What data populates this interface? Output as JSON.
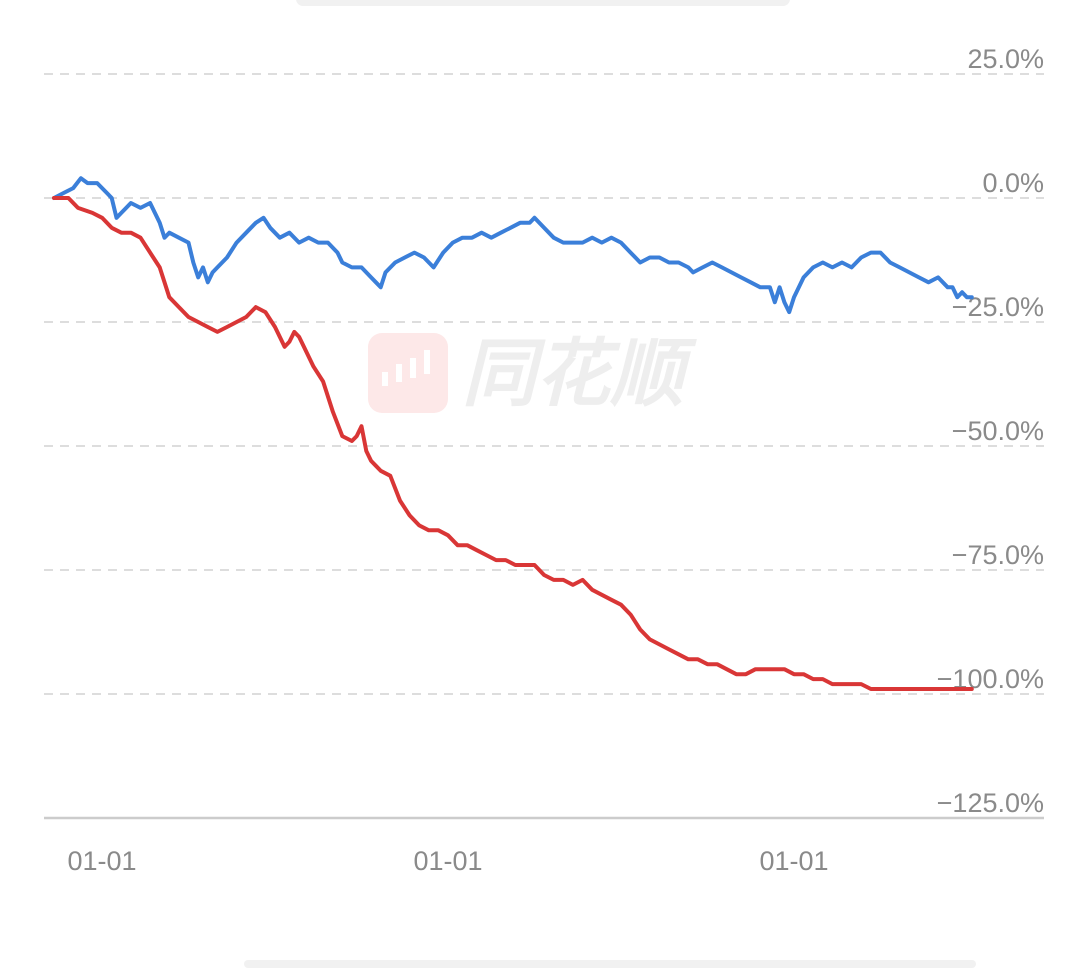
{
  "watermark": {
    "text": "同花顺",
    "icon": "candlestick-logo-icon"
  },
  "colors": {
    "series_1": "#3b7fd9",
    "series_2": "#d93636",
    "grid": "#dddddd",
    "axis": "#cccccc",
    "tick": "#8a8a8a"
  },
  "chart_data": {
    "type": "line",
    "y_unit": "%",
    "ylim": [
      -125,
      25
    ],
    "y_ticks": [
      25,
      0,
      -25,
      -50,
      -75,
      -100,
      -125
    ],
    "y_tick_labels": [
      "25.0%",
      "0.0%",
      "−25.0%",
      "−50.0%",
      "−75.0%",
      "−100.0%",
      "−125.0%"
    ],
    "x_tick_labels": [
      "01-01",
      "01-01",
      "01-01"
    ],
    "x_tick_positions": [
      0.05,
      0.41,
      0.77
    ],
    "xlim": [
      0,
      1
    ],
    "grid": "horizontal dashed",
    "legend": "none",
    "series": [
      {
        "color": "#3b7fd9",
        "points": [
          [
            0,
            0
          ],
          [
            0.01,
            1
          ],
          [
            0.02,
            2
          ],
          [
            0.028,
            4
          ],
          [
            0.035,
            3
          ],
          [
            0.045,
            3
          ],
          [
            0.055,
            1
          ],
          [
            0.06,
            0
          ],
          [
            0.065,
            -4
          ],
          [
            0.07,
            -3
          ],
          [
            0.08,
            -1
          ],
          [
            0.09,
            -2
          ],
          [
            0.1,
            -1
          ],
          [
            0.105,
            -3
          ],
          [
            0.11,
            -5
          ],
          [
            0.115,
            -8
          ],
          [
            0.12,
            -7
          ],
          [
            0.13,
            -8
          ],
          [
            0.14,
            -9
          ],
          [
            0.145,
            -13
          ],
          [
            0.15,
            -16
          ],
          [
            0.155,
            -14
          ],
          [
            0.16,
            -17
          ],
          [
            0.165,
            -15
          ],
          [
            0.17,
            -14
          ],
          [
            0.18,
            -12
          ],
          [
            0.19,
            -9
          ],
          [
            0.2,
            -7
          ],
          [
            0.21,
            -5
          ],
          [
            0.218,
            -4
          ],
          [
            0.225,
            -6
          ],
          [
            0.235,
            -8
          ],
          [
            0.245,
            -7
          ],
          [
            0.255,
            -9
          ],
          [
            0.265,
            -8
          ],
          [
            0.275,
            -9
          ],
          [
            0.285,
            -9
          ],
          [
            0.295,
            -11
          ],
          [
            0.3,
            -13
          ],
          [
            0.31,
            -14
          ],
          [
            0.32,
            -14
          ],
          [
            0.33,
            -16
          ],
          [
            0.335,
            -17
          ],
          [
            0.34,
            -18
          ],
          [
            0.345,
            -15
          ],
          [
            0.355,
            -13
          ],
          [
            0.365,
            -12
          ],
          [
            0.375,
            -11
          ],
          [
            0.385,
            -12
          ],
          [
            0.395,
            -14
          ],
          [
            0.405,
            -11
          ],
          [
            0.415,
            -9
          ],
          [
            0.425,
            -8
          ],
          [
            0.435,
            -8
          ],
          [
            0.445,
            -7
          ],
          [
            0.455,
            -8
          ],
          [
            0.465,
            -7
          ],
          [
            0.475,
            -6
          ],
          [
            0.485,
            -5
          ],
          [
            0.495,
            -5
          ],
          [
            0.5,
            -4
          ],
          [
            0.51,
            -6
          ],
          [
            0.52,
            -8
          ],
          [
            0.53,
            -9
          ],
          [
            0.54,
            -9
          ],
          [
            0.55,
            -9
          ],
          [
            0.56,
            -8
          ],
          [
            0.57,
            -9
          ],
          [
            0.58,
            -8
          ],
          [
            0.59,
            -9
          ],
          [
            0.6,
            -11
          ],
          [
            0.61,
            -13
          ],
          [
            0.62,
            -12
          ],
          [
            0.63,
            -12
          ],
          [
            0.64,
            -13
          ],
          [
            0.65,
            -13
          ],
          [
            0.66,
            -14
          ],
          [
            0.665,
            -15
          ],
          [
            0.675,
            -14
          ],
          [
            0.685,
            -13
          ],
          [
            0.695,
            -14
          ],
          [
            0.705,
            -15
          ],
          [
            0.715,
            -16
          ],
          [
            0.725,
            -17
          ],
          [
            0.735,
            -18
          ],
          [
            0.745,
            -18
          ],
          [
            0.75,
            -21
          ],
          [
            0.755,
            -18
          ],
          [
            0.76,
            -21
          ],
          [
            0.765,
            -23
          ],
          [
            0.77,
            -20
          ],
          [
            0.78,
            -16
          ],
          [
            0.79,
            -14
          ],
          [
            0.8,
            -13
          ],
          [
            0.81,
            -14
          ],
          [
            0.82,
            -13
          ],
          [
            0.83,
            -14
          ],
          [
            0.84,
            -12
          ],
          [
            0.85,
            -11
          ],
          [
            0.86,
            -11
          ],
          [
            0.87,
            -13
          ],
          [
            0.88,
            -14
          ],
          [
            0.89,
            -15
          ],
          [
            0.9,
            -16
          ],
          [
            0.91,
            -17
          ],
          [
            0.92,
            -16
          ],
          [
            0.93,
            -18
          ],
          [
            0.935,
            -18
          ],
          [
            0.94,
            -20
          ],
          [
            0.945,
            -19
          ],
          [
            0.95,
            -20
          ],
          [
            0.955,
            -20
          ]
        ]
      },
      {
        "color": "#d93636",
        "points": [
          [
            0,
            0
          ],
          [
            0.015,
            0
          ],
          [
            0.025,
            -2
          ],
          [
            0.04,
            -3
          ],
          [
            0.05,
            -4
          ],
          [
            0.06,
            -6
          ],
          [
            0.07,
            -7
          ],
          [
            0.08,
            -7
          ],
          [
            0.09,
            -8
          ],
          [
            0.1,
            -11
          ],
          [
            0.11,
            -14
          ],
          [
            0.115,
            -17
          ],
          [
            0.12,
            -20
          ],
          [
            0.13,
            -22
          ],
          [
            0.14,
            -24
          ],
          [
            0.15,
            -25
          ],
          [
            0.16,
            -26
          ],
          [
            0.17,
            -27
          ],
          [
            0.18,
            -26
          ],
          [
            0.19,
            -25
          ],
          [
            0.2,
            -24
          ],
          [
            0.21,
            -22
          ],
          [
            0.22,
            -23
          ],
          [
            0.23,
            -26
          ],
          [
            0.235,
            -28
          ],
          [
            0.24,
            -30
          ],
          [
            0.245,
            -29
          ],
          [
            0.25,
            -27
          ],
          [
            0.255,
            -28
          ],
          [
            0.26,
            -30
          ],
          [
            0.27,
            -34
          ],
          [
            0.28,
            -37
          ],
          [
            0.29,
            -43
          ],
          [
            0.3,
            -48
          ],
          [
            0.31,
            -49
          ],
          [
            0.315,
            -48
          ],
          [
            0.32,
            -46
          ],
          [
            0.325,
            -51
          ],
          [
            0.33,
            -53
          ],
          [
            0.335,
            -54
          ],
          [
            0.34,
            -55
          ],
          [
            0.35,
            -56
          ],
          [
            0.36,
            -61
          ],
          [
            0.37,
            -64
          ],
          [
            0.38,
            -66
          ],
          [
            0.39,
            -67
          ],
          [
            0.4,
            -67
          ],
          [
            0.41,
            -68
          ],
          [
            0.42,
            -70
          ],
          [
            0.43,
            -70
          ],
          [
            0.44,
            -71
          ],
          [
            0.45,
            -72
          ],
          [
            0.46,
            -73
          ],
          [
            0.47,
            -73
          ],
          [
            0.48,
            -74
          ],
          [
            0.49,
            -74
          ],
          [
            0.5,
            -74
          ],
          [
            0.51,
            -76
          ],
          [
            0.52,
            -77
          ],
          [
            0.53,
            -77
          ],
          [
            0.54,
            -78
          ],
          [
            0.55,
            -77
          ],
          [
            0.56,
            -79
          ],
          [
            0.57,
            -80
          ],
          [
            0.58,
            -81
          ],
          [
            0.59,
            -82
          ],
          [
            0.6,
            -84
          ],
          [
            0.61,
            -87
          ],
          [
            0.62,
            -89
          ],
          [
            0.63,
            -90
          ],
          [
            0.64,
            -91
          ],
          [
            0.65,
            -92
          ],
          [
            0.66,
            -93
          ],
          [
            0.67,
            -93
          ],
          [
            0.68,
            -94
          ],
          [
            0.69,
            -94
          ],
          [
            0.7,
            -95
          ],
          [
            0.71,
            -96
          ],
          [
            0.72,
            -96
          ],
          [
            0.73,
            -95
          ],
          [
            0.74,
            -95
          ],
          [
            0.75,
            -95
          ],
          [
            0.76,
            -95
          ],
          [
            0.77,
            -96
          ],
          [
            0.78,
            -96
          ],
          [
            0.79,
            -97
          ],
          [
            0.8,
            -97
          ],
          [
            0.81,
            -98
          ],
          [
            0.82,
            -98
          ],
          [
            0.83,
            -98
          ],
          [
            0.84,
            -98
          ],
          [
            0.85,
            -99
          ],
          [
            0.86,
            -99
          ],
          [
            0.87,
            -99
          ],
          [
            0.88,
            -99
          ],
          [
            0.89,
            -99
          ],
          [
            0.9,
            -99
          ],
          [
            0.91,
            -99
          ],
          [
            0.92,
            -99
          ],
          [
            0.93,
            -99
          ],
          [
            0.94,
            -99
          ],
          [
            0.95,
            -99
          ],
          [
            0.955,
            -99
          ]
        ]
      }
    ]
  }
}
